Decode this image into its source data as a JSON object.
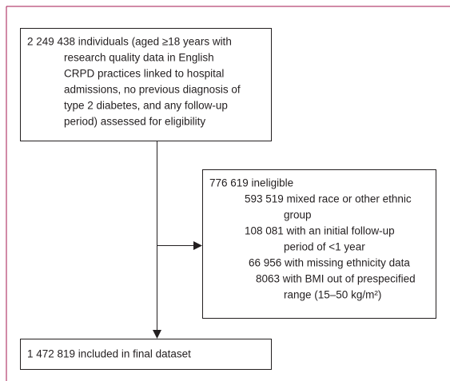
{
  "nodes": [
    {
      "lines": [
        "2 249 438 individuals (aged ≥18 years with",
        "research quality data in English",
        "CRPD practices linked to hospital",
        "admissions, no previous diagnosis of",
        "type 2 diabetes, and any follow-up",
        "period) assessed for eligibility"
      ]
    },
    {
      "lines": [
        "776 619 ineligible",
        "593 519 mixed race or other ethnic",
        "group",
        "108 081 with an initial follow-up",
        "period of <1 year",
        "66 956 with missing ethnicity data",
        "8063 with BMI out of prespecified",
        "range (15–50 kg/m²)"
      ]
    },
    {
      "lines": [
        "1 472 819 included in final dataset"
      ]
    }
  ]
}
